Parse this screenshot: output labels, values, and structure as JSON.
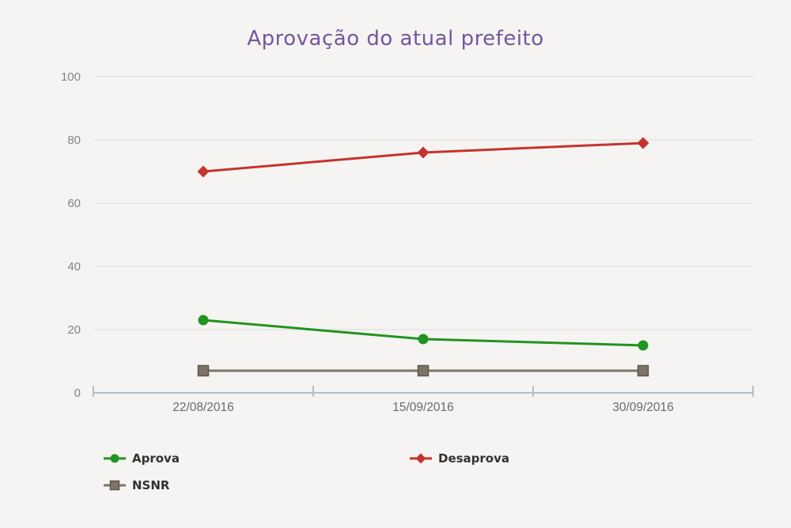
{
  "title": "Aprovação do atual prefeito",
  "colors": {
    "background": "#f5f4f2",
    "title": "#75569e",
    "grid": "#e4e3e1",
    "axis": "#b6bec6",
    "y_label": "#848484",
    "x_label": "#6a6a6a",
    "legend_text": "#333333"
  },
  "chart_data": {
    "type": "line",
    "title": "Aprovação do atual prefeito",
    "categories": [
      "22/08/2016",
      "15/09/2016",
      "30/09/2016"
    ],
    "series": [
      {
        "name": "Aprova",
        "values": [
          23,
          17,
          15
        ],
        "color": "#219421",
        "marker": "circle"
      },
      {
        "name": "Desaprova",
        "values": [
          70,
          76,
          79
        ],
        "color": "#c5332f",
        "marker": "diamond"
      },
      {
        "name": "NSNR",
        "values": [
          7,
          7,
          7
        ],
        "color": "#7d7367",
        "marker": "square",
        "marker_border": "#5e564c"
      }
    ],
    "ylim": [
      0,
      100
    ],
    "yticks": [
      0,
      20,
      40,
      60,
      80,
      100
    ],
    "xlabel": "",
    "ylabel": "",
    "grid": true,
    "legend_position": "bottom-left"
  }
}
